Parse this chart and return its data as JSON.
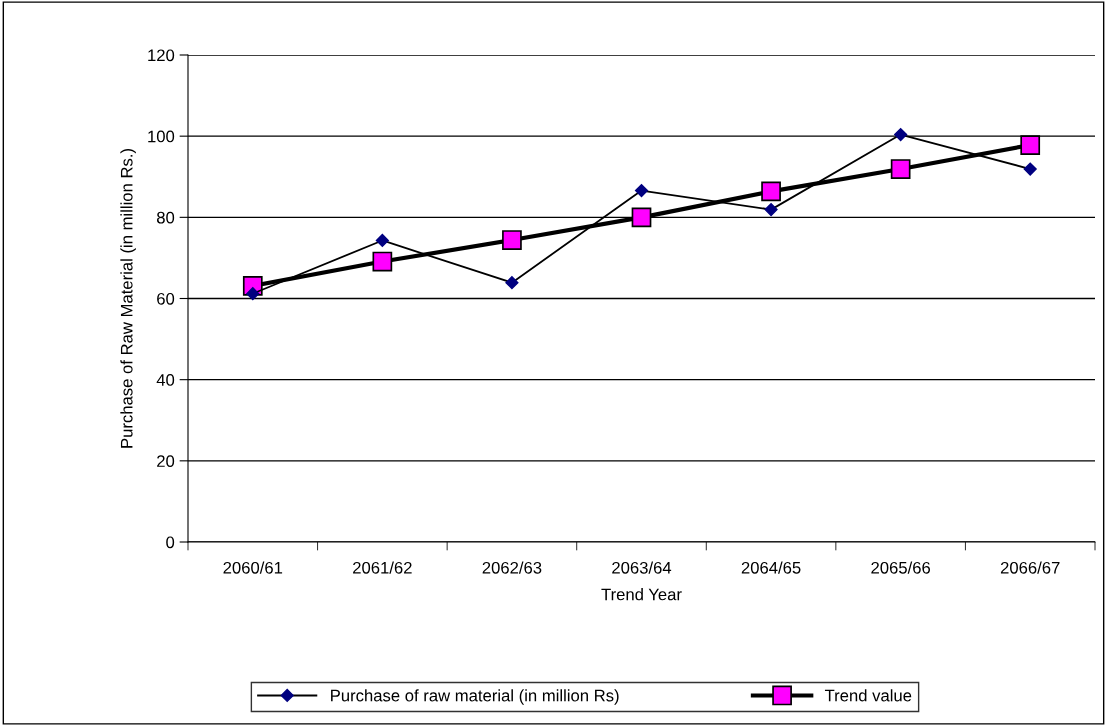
{
  "chart_data": {
    "type": "line",
    "xlabel": "Trend Year",
    "ylabel": "Purchase of Raw Material (in million Rs.)",
    "categories": [
      "2060/61",
      "2061/62",
      "2062/63",
      "2063/64",
      "2064/65",
      "2065/66",
      "2066/67"
    ],
    "series": [
      {
        "name": "Purchase of raw material (in million Rs)",
        "color": "#000080",
        "marker": "diamond",
        "values": [
          61.2,
          74.3,
          63.9,
          86.6,
          81.9,
          100.4,
          91.9
        ]
      },
      {
        "name": "Trend value",
        "color": "#ff00ff",
        "marker": "square",
        "values": [
          63.1,
          69.1,
          74.4,
          80.0,
          86.4,
          91.9,
          97.8
        ]
      }
    ],
    "ylim": [
      0,
      120
    ],
    "yticks": [
      0,
      20,
      40,
      60,
      80,
      100,
      120
    ],
    "grid": "y",
    "legend": "bottom"
  }
}
